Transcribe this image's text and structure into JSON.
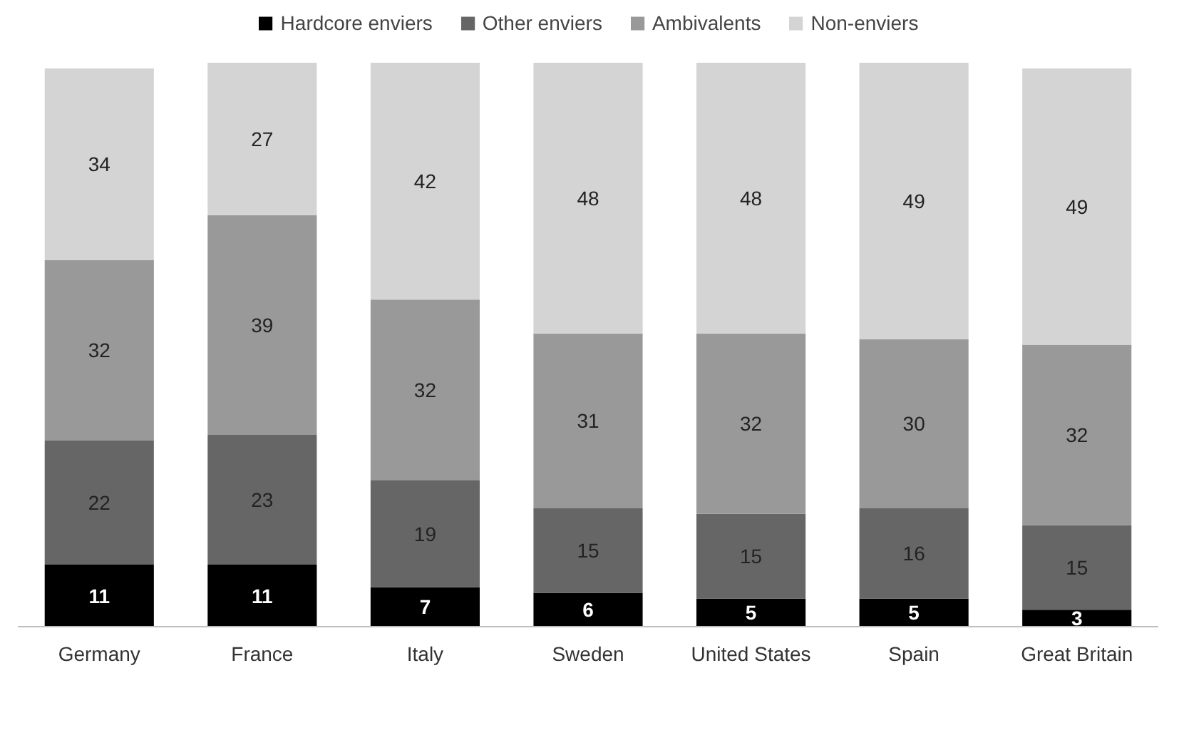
{
  "chart_data": {
    "type": "bar",
    "stacked": true,
    "categories": [
      "Germany",
      "France",
      "Italy",
      "Sweden",
      "United States",
      "Spain",
      "Great Britain"
    ],
    "series": [
      {
        "name": "Hardcore enviers",
        "color": "#000000",
        "values": [
          11,
          11,
          7,
          6,
          5,
          5,
          3
        ]
      },
      {
        "name": "Other enviers",
        "color": "#666666",
        "values": [
          22,
          23,
          19,
          15,
          15,
          16,
          15
        ]
      },
      {
        "name": "Ambivalents",
        "color": "#999999",
        "values": [
          32,
          39,
          32,
          31,
          32,
          30,
          32
        ]
      },
      {
        "name": "Non-enviers",
        "color": "#d4d4d4",
        "values": [
          34,
          27,
          42,
          48,
          48,
          49,
          49
        ]
      }
    ],
    "data_labels": true,
    "legend": "top",
    "grid": false
  }
}
